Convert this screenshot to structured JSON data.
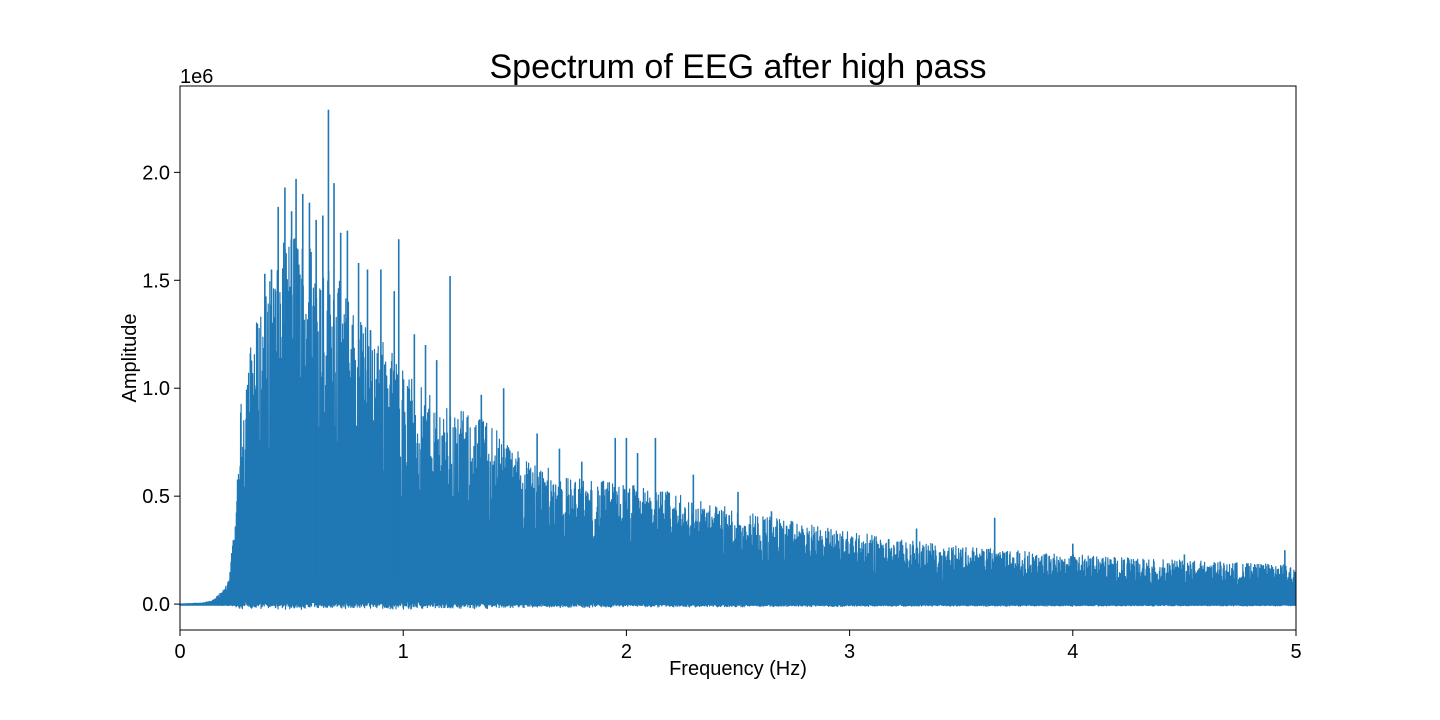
{
  "chart_data": {
    "type": "line",
    "title": "Spectrum of EEG after high pass",
    "xlabel": "Frequency (Hz)",
    "ylabel": "Amplitude",
    "y_offset_label": "1e6",
    "xlim": [
      0,
      5
    ],
    "ylim": [
      -0.12,
      2.4
    ],
    "y_scale_multiplier": 1000000,
    "x_ticks": [
      0,
      1,
      2,
      3,
      4,
      5
    ],
    "x_tick_labels": [
      "0",
      "1",
      "2",
      "3",
      "4",
      "5"
    ],
    "y_ticks": [
      0.0,
      0.5,
      1.0,
      1.5,
      2.0
    ],
    "y_tick_labels": [
      "0.0",
      "0.5",
      "1.0",
      "1.5",
      "2.0"
    ],
    "grid": false,
    "legend": "none",
    "series": [
      {
        "color": "#1f77b4",
        "envelope_x": [
          0,
          0.1,
          0.15,
          0.2,
          0.22,
          0.25,
          0.27,
          0.3,
          0.35,
          0.4,
          0.45,
          0.5,
          0.55,
          0.6,
          0.65,
          0.7,
          0.75,
          0.8,
          0.9,
          1.0,
          1.1,
          1.2,
          1.3,
          1.4,
          1.5,
          1.6,
          1.7,
          1.8,
          2.0,
          2.2,
          2.4,
          2.6,
          2.8,
          3.0,
          3.2,
          3.5,
          3.7,
          4.0,
          4.3,
          4.6,
          5.0
        ],
        "envelope_max": [
          0.0,
          0.005,
          0.02,
          0.07,
          0.14,
          0.4,
          0.9,
          1.15,
          1.35,
          1.5,
          1.65,
          1.75,
          1.7,
          1.68,
          1.6,
          1.55,
          1.42,
          1.35,
          1.25,
          1.1,
          0.98,
          0.92,
          0.88,
          0.85,
          0.72,
          0.66,
          0.6,
          0.58,
          0.56,
          0.52,
          0.46,
          0.42,
          0.37,
          0.34,
          0.3,
          0.27,
          0.25,
          0.23,
          0.21,
          0.2,
          0.18
        ],
        "peaks": [
          {
            "x": 0.38,
            "y": 1.53
          },
          {
            "x": 0.41,
            "y": 1.55
          },
          {
            "x": 0.44,
            "y": 1.84
          },
          {
            "x": 0.47,
            "y": 1.93
          },
          {
            "x": 0.5,
            "y": 1.82
          },
          {
            "x": 0.52,
            "y": 1.97
          },
          {
            "x": 0.55,
            "y": 1.9
          },
          {
            "x": 0.58,
            "y": 1.86
          },
          {
            "x": 0.61,
            "y": 1.78
          },
          {
            "x": 0.64,
            "y": 1.8
          },
          {
            "x": 0.665,
            "y": 2.29
          },
          {
            "x": 0.69,
            "y": 1.95
          },
          {
            "x": 0.72,
            "y": 1.72
          },
          {
            "x": 0.75,
            "y": 1.73
          },
          {
            "x": 0.8,
            "y": 1.58
          },
          {
            "x": 0.84,
            "y": 1.55
          },
          {
            "x": 0.9,
            "y": 1.55
          },
          {
            "x": 0.96,
            "y": 1.45
          },
          {
            "x": 0.98,
            "y": 1.69
          },
          {
            "x": 1.05,
            "y": 1.25
          },
          {
            "x": 1.1,
            "y": 1.2
          },
          {
            "x": 1.15,
            "y": 1.13
          },
          {
            "x": 1.21,
            "y": 1.52
          },
          {
            "x": 1.35,
            "y": 0.97
          },
          {
            "x": 1.45,
            "y": 1.0
          },
          {
            "x": 1.6,
            "y": 0.79
          },
          {
            "x": 1.7,
            "y": 0.72
          },
          {
            "x": 1.8,
            "y": 0.66
          },
          {
            "x": 1.95,
            "y": 0.77
          },
          {
            "x": 2.0,
            "y": 0.77
          },
          {
            "x": 2.05,
            "y": 0.7
          },
          {
            "x": 2.13,
            "y": 0.77
          },
          {
            "x": 2.3,
            "y": 0.6
          },
          {
            "x": 2.5,
            "y": 0.52
          },
          {
            "x": 2.65,
            "y": 0.43
          },
          {
            "x": 3.3,
            "y": 0.35
          },
          {
            "x": 3.65,
            "y": 0.4
          },
          {
            "x": 4.0,
            "y": 0.28
          },
          {
            "x": 4.5,
            "y": 0.23
          },
          {
            "x": 4.95,
            "y": 0.25
          }
        ],
        "noise_floor_low": -0.005,
        "noise_floor_dips": [
          -0.02,
          0.07
        ]
      }
    ]
  }
}
